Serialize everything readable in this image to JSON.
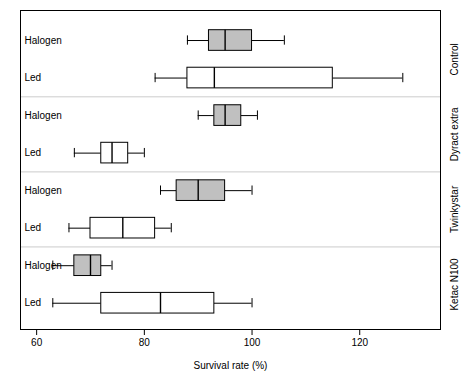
{
  "chart_data": {
    "type": "box",
    "orientation": "horizontal",
    "xlabel": "Survival rate (%)",
    "xlim": [
      57,
      135
    ],
    "xticks": [
      60,
      80,
      100,
      120
    ],
    "grid": false,
    "boxes": [
      {
        "label": "Halogen",
        "group": "Control",
        "whisker_low": 88,
        "q1": 92,
        "median": 95,
        "q3": 100,
        "whisker_high": 106,
        "color": "#c0c0c0"
      },
      {
        "label": "Led",
        "group": "Control",
        "whisker_low": 82,
        "q1": 88,
        "median": 93,
        "q3": 115,
        "whisker_high": 128,
        "color": "#ffffff"
      },
      {
        "label": "Halogen",
        "group": "Dyract extra",
        "whisker_low": 90,
        "q1": 93,
        "median": 95,
        "q3": 98,
        "whisker_high": 101,
        "color": "#c0c0c0"
      },
      {
        "label": "Led",
        "group": "Dyract extra",
        "whisker_low": 67,
        "q1": 72,
        "median": 74,
        "q3": 77,
        "whisker_high": 80,
        "color": "#ffffff"
      },
      {
        "label": "Halogen",
        "group": "Twinkystar",
        "whisker_low": 83,
        "q1": 86,
        "median": 90,
        "q3": 95,
        "whisker_high": 100,
        "color": "#c0c0c0"
      },
      {
        "label": "Led",
        "group": "Twinkystar",
        "whisker_low": 66,
        "q1": 70,
        "median": 76,
        "q3": 82,
        "whisker_high": 85,
        "color": "#ffffff"
      },
      {
        "label": "Halogen",
        "group": "Ketac N100",
        "whisker_low": 63,
        "q1": 67,
        "median": 70,
        "q3": 72,
        "whisker_high": 74,
        "color": "#c0c0c0"
      },
      {
        "label": "Led",
        "group": "Ketac N100",
        "whisker_low": 63,
        "q1": 72,
        "median": 83,
        "q3": 93,
        "whisker_high": 100,
        "color": "#ffffff"
      }
    ]
  }
}
